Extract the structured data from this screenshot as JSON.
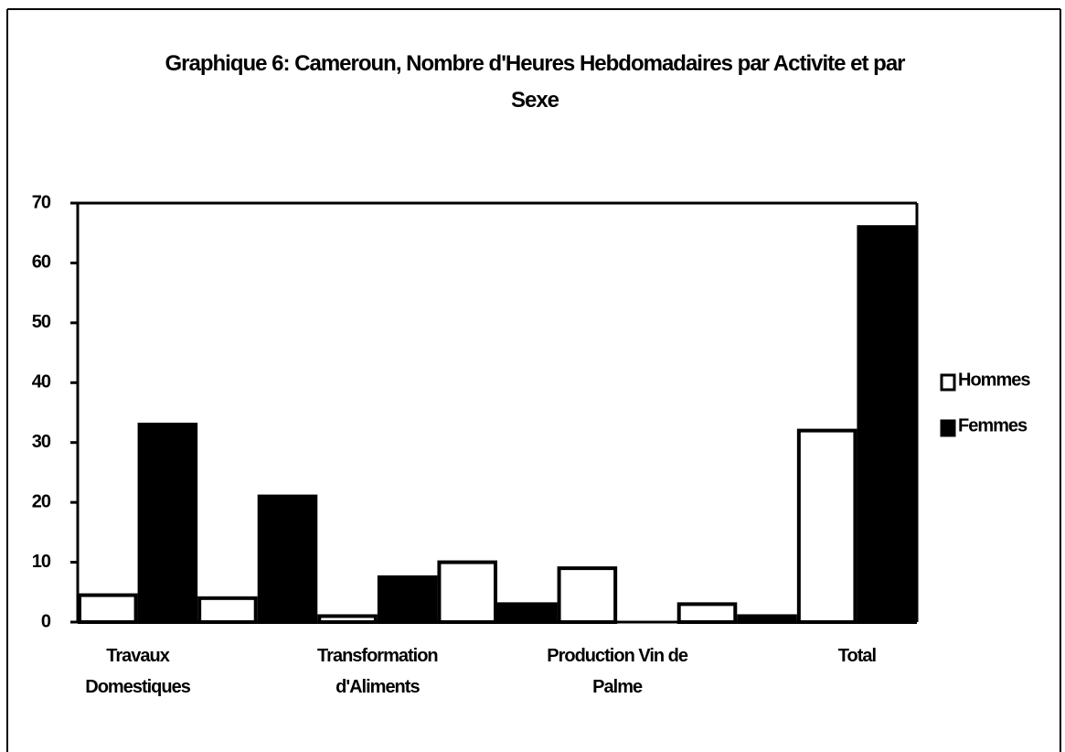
{
  "chart_data": {
    "type": "bar",
    "title": "Graphique 6: Cameroun, Nombre d'Heures Hebdomadaires par Activite et par Sexe",
    "categories": [
      "Travaux Domestiques",
      null,
      "Transformation d'Aliments",
      null,
      "Production Vin de Palme",
      null,
      "Total"
    ],
    "series": [
      {
        "name": "Hommes",
        "color": "#ffffff",
        "values": [
          4.5,
          4,
          1,
          10,
          9,
          3,
          32
        ]
      },
      {
        "name": "Femmes",
        "color": "#000000",
        "values": [
          33,
          21,
          7.5,
          3,
          0,
          1,
          66
        ]
      }
    ],
    "ylim": [
      0,
      70
    ],
    "yticks": [
      0,
      10,
      20,
      30,
      40,
      50,
      60,
      70
    ],
    "legend": "right"
  }
}
